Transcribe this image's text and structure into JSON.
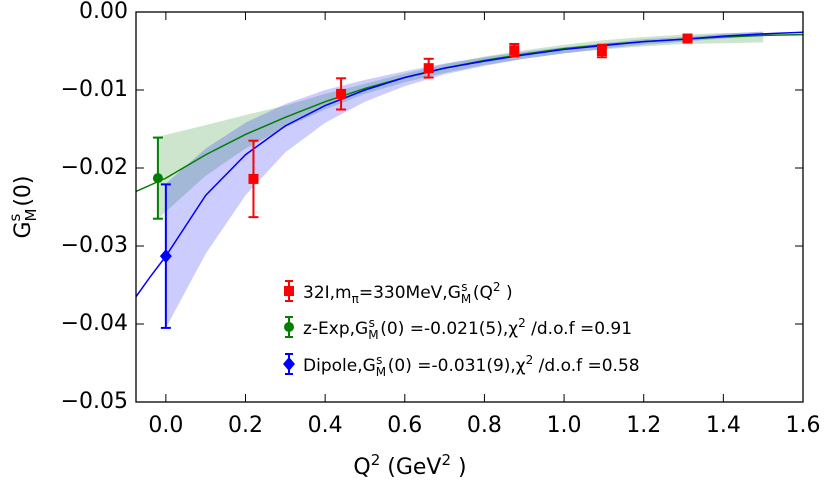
{
  "chart_data": {
    "type": "errorbar",
    "x_label": [
      "Q",
      "2",
      " (GeV",
      "2",
      " )"
    ],
    "y_label": [
      "G",
      "M",
      "s",
      " (0)"
    ],
    "xlim": [
      -0.075,
      1.6
    ],
    "ylim": [
      -0.05,
      0
    ],
    "xticks": [
      {
        "value": 0,
        "label": "0.0"
      },
      {
        "value": 0.2,
        "label": "0.2"
      },
      {
        "value": 0.4,
        "label": "0.4"
      },
      {
        "value": 0.6,
        "label": "0.6"
      },
      {
        "value": 0.8,
        "label": "0.8"
      },
      {
        "value": 1.0,
        "label": "1.0"
      },
      {
        "value": 1.2,
        "label": "1.2"
      },
      {
        "value": 1.4,
        "label": "1.4"
      },
      {
        "value": 1.6,
        "label": "1.6"
      }
    ],
    "yticks": [
      {
        "value": -0.05,
        "label": "−0.05"
      },
      {
        "value": -0.04,
        "label": "−0.04"
      },
      {
        "value": -0.03,
        "label": "−0.03"
      },
      {
        "value": -0.02,
        "label": "−0.02"
      },
      {
        "value": -0.01,
        "label": "−0.01"
      },
      {
        "value": 0,
        "label": "0.00"
      }
    ],
    "grid": false,
    "legend": "lower right",
    "series": [
      {
        "name": [
          "32I,m",
          "π",
          "=330MeV,G",
          "M",
          "s",
          " (Q",
          "2",
          " )"
        ],
        "type": "errorbar",
        "marker": "square",
        "color": "#ff0000",
        "x": [
          0.22,
          0.44,
          0.66,
          0.875,
          1.095,
          1.31
        ],
        "values": [
          -0.0214,
          -0.0105,
          -0.0072,
          -0.0049,
          -0.005,
          -0.0034
        ],
        "errors": [
          0.0049,
          0.002,
          0.0012,
          0.0008,
          0.0008,
          0.0004
        ]
      },
      {
        "name": [
          "z-Exp,G",
          "M",
          "s",
          " (0) =-0.021(5),χ",
          "2",
          " /d.o.f =0.91"
        ],
        "type": "errorbar",
        "marker": "circle",
        "color": "#007f00",
        "x": [
          -0.02
        ],
        "values": [
          -0.0213
        ],
        "errors": [
          0.0052
        ]
      },
      {
        "name": [
          "Dipole,G",
          "M",
          "s",
          " (0) =-0.031(9),χ",
          "2",
          " /d.o.f =0.58"
        ],
        "type": "errorbar",
        "marker": "diamond",
        "color": "#0000ff",
        "x": [
          0
        ],
        "values": [
          -0.0313
        ],
        "errors": [
          0.0092
        ]
      },
      {
        "type": "band",
        "color": "#007f00",
        "x": [
          -0.02,
          0.1,
          0.2,
          0.3,
          0.4,
          0.5,
          0.6,
          0.7,
          0.8,
          0.9,
          1.0,
          1.1,
          1.2,
          1.3,
          1.4,
          1.5
        ],
        "upper": [
          -0.016,
          -0.0145,
          -0.0132,
          -0.012,
          -0.0105,
          -0.0092,
          -0.0079,
          -0.0067,
          -0.0057,
          -0.0049,
          -0.0042,
          -0.0036,
          -0.0032,
          -0.0029,
          -0.0027,
          -0.0026
        ],
        "lower": [
          -0.0265,
          -0.021,
          -0.0175,
          -0.0148,
          -0.0125,
          -0.0105,
          -0.009,
          -0.0078,
          -0.0068,
          -0.006,
          -0.0053,
          -0.0048,
          -0.0044,
          -0.0041,
          -0.004,
          -0.0039
        ]
      },
      {
        "type": "band",
        "color": "#0000ff",
        "x": [
          0,
          0.1,
          0.2,
          0.3,
          0.4,
          0.5,
          0.6,
          0.7,
          0.8,
          0.9,
          1.0,
          1.1,
          1.2,
          1.3,
          1.4,
          1.5
        ],
        "upper": [
          -0.022,
          -0.0175,
          -0.0142,
          -0.0118,
          -0.01,
          -0.0087,
          -0.0076,
          -0.0066,
          -0.0058,
          -0.0051,
          -0.0045,
          -0.004,
          -0.0035,
          -0.0032,
          -0.0028,
          -0.0025
        ],
        "lower": [
          -0.0405,
          -0.031,
          -0.0235,
          -0.018,
          -0.0142,
          -0.0115,
          -0.0095,
          -0.008,
          -0.0069,
          -0.006,
          -0.0053,
          -0.0047,
          -0.0042,
          -0.0038,
          -0.0034,
          -0.0031
        ]
      },
      {
        "type": "line",
        "color": "#007f00",
        "x": [
          -0.075,
          0,
          0.1,
          0.2,
          0.3,
          0.4,
          0.5,
          0.6,
          0.7,
          0.8,
          0.9,
          1.0,
          1.1,
          1.2,
          1.3,
          1.4,
          1.5,
          1.6
        ],
        "values": [
          -0.023,
          -0.0213,
          -0.0183,
          -0.0157,
          -0.0135,
          -0.0115,
          -0.0098,
          -0.0084,
          -0.0072,
          -0.0062,
          -0.0054,
          -0.0047,
          -0.0042,
          -0.0038,
          -0.0035,
          -0.0032,
          -0.003,
          -0.0029
        ]
      },
      {
        "type": "line",
        "color": "#0000ff",
        "x": [
          -0.075,
          -0.04,
          0,
          0.1,
          0.2,
          0.3,
          0.4,
          0.5,
          0.6,
          0.7,
          0.8,
          0.9,
          1.0,
          1.1,
          1.2,
          1.3,
          1.4,
          1.5,
          1.6
        ],
        "values": [
          -0.0365,
          -0.034,
          -0.0313,
          -0.0235,
          -0.0183,
          -0.0146,
          -0.012,
          -0.01,
          -0.0084,
          -0.0072,
          -0.0063,
          -0.0055,
          -0.0048,
          -0.0043,
          -0.0038,
          -0.0035,
          -0.0031,
          -0.0028,
          -0.0026
        ]
      }
    ]
  }
}
